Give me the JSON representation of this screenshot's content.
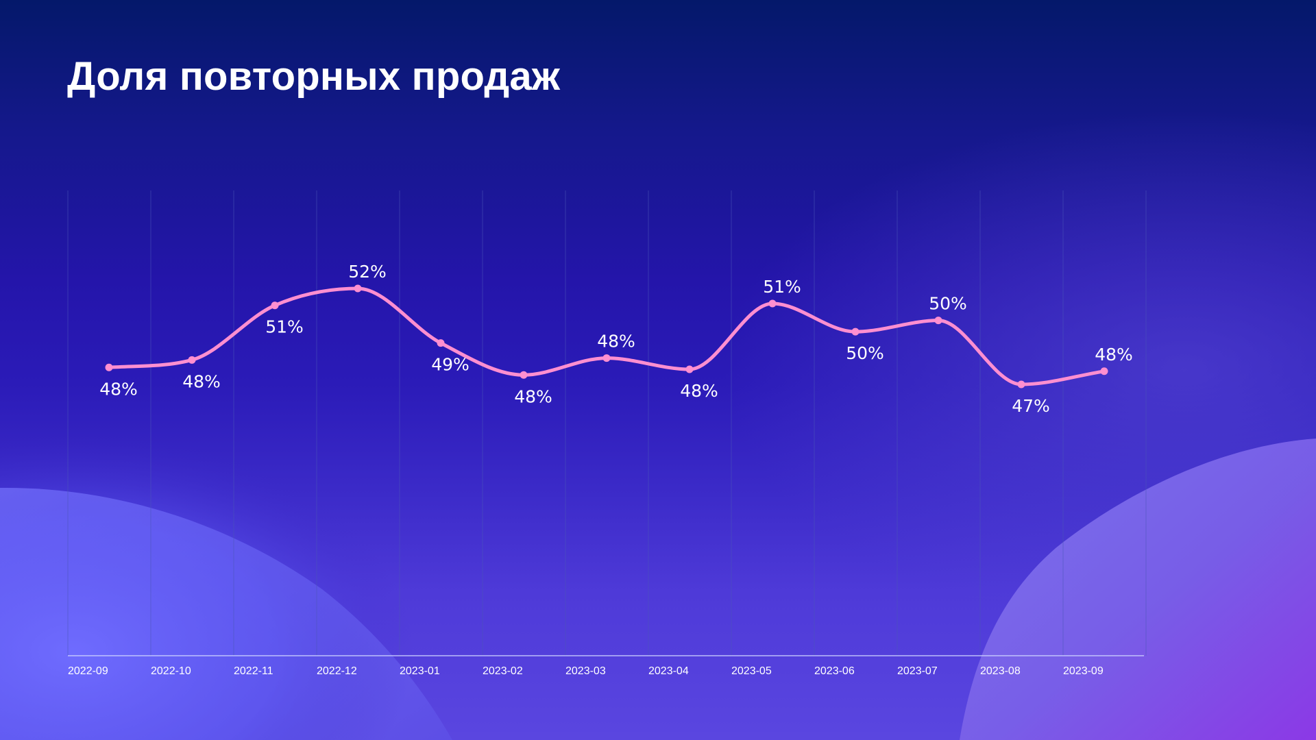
{
  "title": "Доля повторных продаж",
  "colors": {
    "line": "#ff8fd0",
    "grid": "#4a55b8",
    "axis": "#cfd3ff",
    "text": "#ffffff"
  },
  "chart_data": {
    "type": "line",
    "title": "Доля повторных продаж",
    "xlabel": "",
    "ylabel": "",
    "grid": "vertical",
    "categories": [
      "2022-09",
      "2022-10",
      "2022-11",
      "2022-12",
      "2023-01",
      "2023-02",
      "2023-03",
      "2023-04",
      "2023-05",
      "2023-06",
      "2023-07",
      "2023-08",
      "2023-09"
    ],
    "series": [
      {
        "values": [
          48.0,
          48.4,
          51.3,
          52.2,
          49.3,
          47.6,
          48.5,
          47.9,
          51.4,
          49.9,
          50.5,
          47.1,
          47.8
        ],
        "labels": [
          "48%",
          "48%",
          "51%",
          "52%",
          "49%",
          "48%",
          "48%",
          "48%",
          "51%",
          "50%",
          "50%",
          "47%",
          "48%"
        ]
      }
    ]
  }
}
